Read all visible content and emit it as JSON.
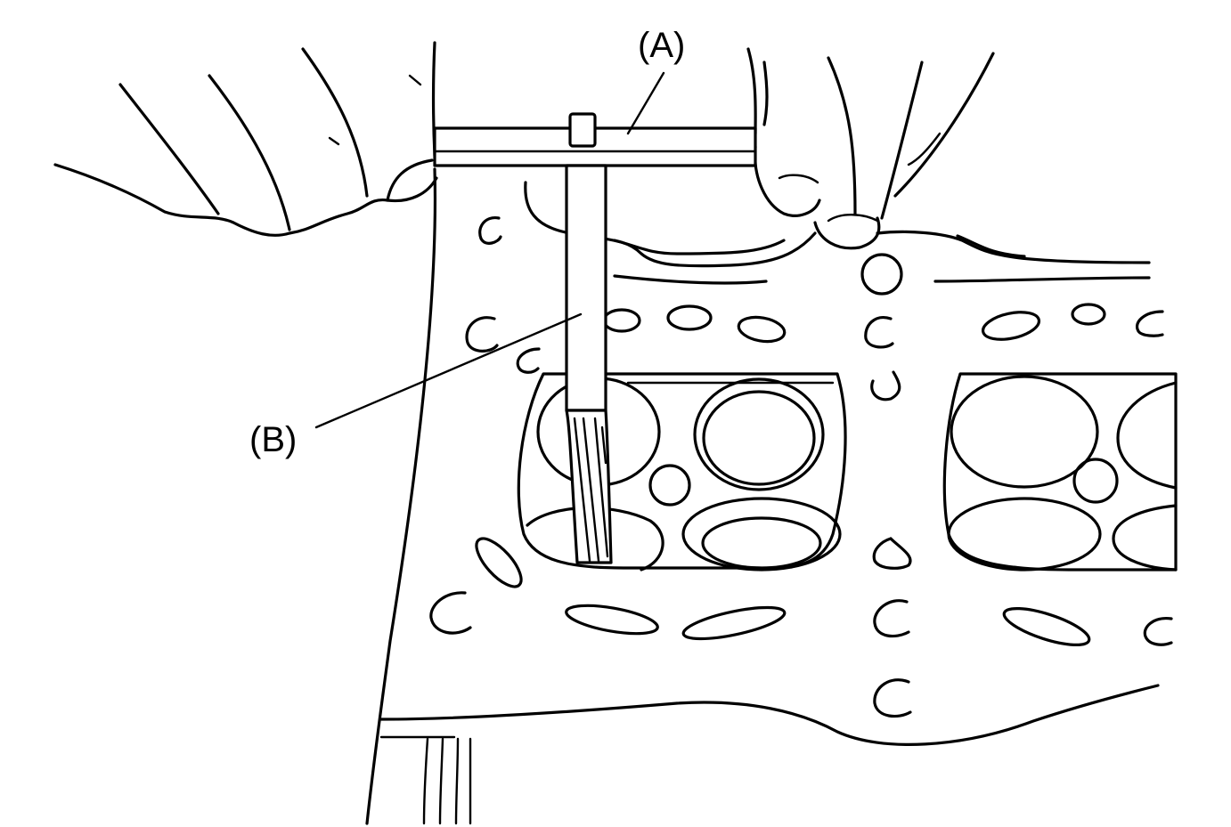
{
  "labels": {
    "a": "(A)",
    "b": "(B)"
  },
  "colors": {
    "ink": "#000000",
    "paper": "#ffffff"
  }
}
